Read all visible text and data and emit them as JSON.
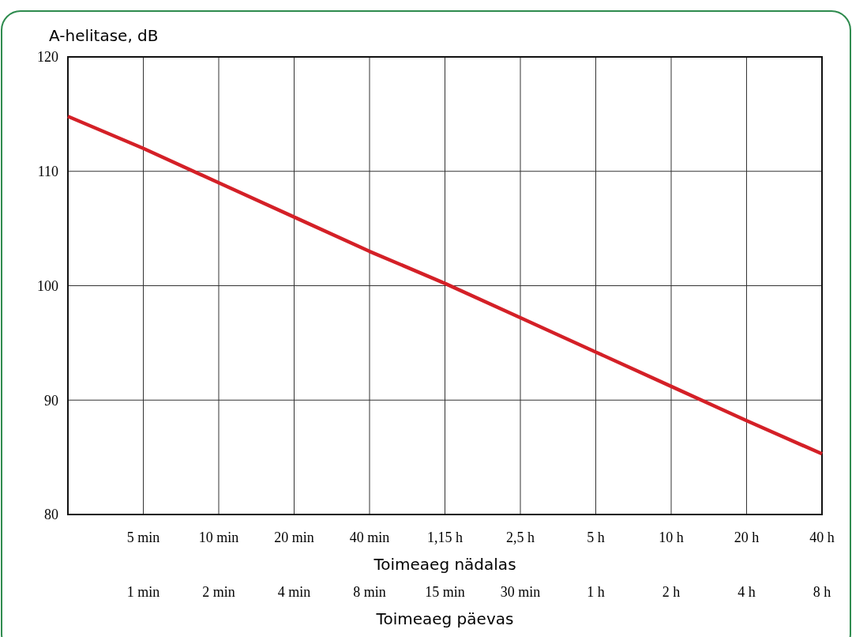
{
  "chart_data": {
    "type": "line",
    "ylabel": "A-helitase, dB",
    "xlabel": "Toimeaeg nädalas",
    "x2label": "Toimeaeg päevas",
    "categories": [
      null,
      "5 min",
      "10 min",
      "20 min",
      "40 min",
      "1,15 h",
      "2,5 h",
      "5 h",
      "10 h",
      "20 h",
      "40 h"
    ],
    "series": [
      {
        "color": "#d42027",
        "values": [
          114.8,
          112,
          109,
          106,
          103,
          100.2,
          97.2,
          94.2,
          91.2,
          88.2,
          85.3
        ]
      }
    ],
    "annotations": [
      "1 min",
      "2 min",
      "4 min",
      "8 min",
      "15 min",
      "30 min",
      "1 h",
      "2 h",
      "4 h",
      "8 h"
    ],
    "ylim": [
      80,
      120
    ],
    "yticks": [
      80,
      90,
      100,
      110,
      120
    ],
    "grid": true,
    "marker": "none",
    "line_style": "solid"
  }
}
